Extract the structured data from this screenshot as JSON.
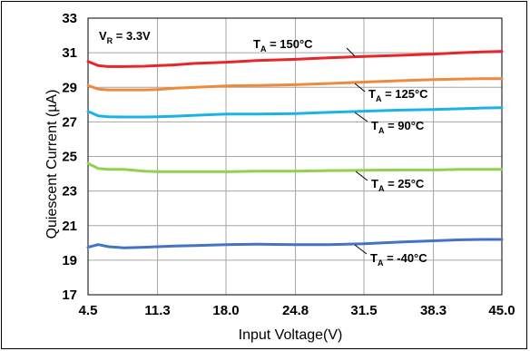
{
  "chart_data": {
    "type": "line",
    "xlabel": "Input Voltage(V)",
    "ylabel": "Quiescent Current (µA)",
    "xlim": [
      4.5,
      45.0
    ],
    "ylim": [
      17,
      33
    ],
    "x_ticks": [
      "4.5",
      "11.3",
      "18.0",
      "24.8",
      "31.5",
      "38.3",
      "45.0"
    ],
    "y_ticks": [
      "17",
      "19",
      "21",
      "23",
      "25",
      "27",
      "29",
      "31",
      "33"
    ],
    "grid": true,
    "condition": {
      "main": "V",
      "sub": "R",
      "value": " = 3.3V"
    },
    "series": [
      {
        "name": "T_A = 150°C",
        "label_main": "T",
        "label_sub": "A",
        "label_value": " = 150°C",
        "color": "#e8262a",
        "x": [
          4.5,
          5.5,
          6.5,
          8,
          10,
          11.3,
          13,
          15,
          18,
          21,
          24.8,
          28,
          31.5,
          35,
          38.3,
          41,
          43,
          45
        ],
        "y": [
          30.5,
          30.25,
          30.2,
          30.2,
          30.22,
          30.25,
          30.3,
          30.38,
          30.45,
          30.55,
          30.62,
          30.7,
          30.78,
          30.85,
          30.92,
          31.0,
          31.05,
          31.08
        ]
      },
      {
        "name": "T_A = 125°C",
        "label_main": "T",
        "label_sub": "A",
        "label_value": " = 125°C",
        "color": "#ed8a3e",
        "x": [
          4.5,
          5.5,
          6.5,
          8,
          10,
          11.3,
          13,
          15,
          18,
          21,
          24.8,
          28,
          31.5,
          35,
          38.3,
          41,
          43,
          45
        ],
        "y": [
          29.1,
          28.9,
          28.85,
          28.85,
          28.85,
          28.87,
          28.95,
          29.0,
          29.08,
          29.1,
          29.15,
          29.22,
          29.3,
          29.38,
          29.45,
          29.48,
          29.5,
          29.5
        ]
      },
      {
        "name": "T_A = 90°C",
        "label_main": "T",
        "label_sub": "A",
        "label_value": " = 90°C",
        "color": "#1bb2e6",
        "x": [
          4.5,
          5.5,
          6.5,
          8,
          10,
          11.3,
          13,
          15,
          18,
          21,
          24.8,
          28,
          31.5,
          35,
          38.3,
          41,
          43,
          45
        ],
        "y": [
          27.6,
          27.35,
          27.3,
          27.28,
          27.28,
          27.3,
          27.33,
          27.38,
          27.45,
          27.45,
          27.48,
          27.55,
          27.62,
          27.68,
          27.72,
          27.76,
          27.8,
          27.82
        ]
      },
      {
        "name": "T_A = 25°C",
        "label_main": "T",
        "label_sub": "A",
        "label_value": " = 25°C",
        "color": "#92d050",
        "x": [
          4.5,
          5.5,
          6.5,
          8,
          10,
          11.3,
          13,
          15,
          18,
          21,
          24.8,
          28,
          31.5,
          35,
          38.3,
          41,
          43,
          45
        ],
        "y": [
          24.6,
          24.3,
          24.25,
          24.25,
          24.15,
          24.12,
          24.12,
          24.12,
          24.12,
          24.15,
          24.15,
          24.18,
          24.2,
          24.22,
          24.22,
          24.25,
          24.25,
          24.25
        ]
      },
      {
        "name": "T_A = -40°C",
        "label_main": "T",
        "label_sub": "A",
        "label_value": " = -40°C",
        "color": "#4472c4",
        "x": [
          4.5,
          5.5,
          6.5,
          8,
          10,
          11.3,
          13,
          15,
          18,
          21,
          24.8,
          28,
          31.5,
          35,
          38.3,
          41,
          43,
          45
        ],
        "y": [
          19.75,
          19.9,
          19.78,
          19.72,
          19.75,
          19.78,
          19.82,
          19.85,
          19.9,
          19.92,
          19.9,
          19.9,
          19.95,
          20.05,
          20.12,
          20.18,
          20.2,
          20.2
        ]
      }
    ]
  }
}
